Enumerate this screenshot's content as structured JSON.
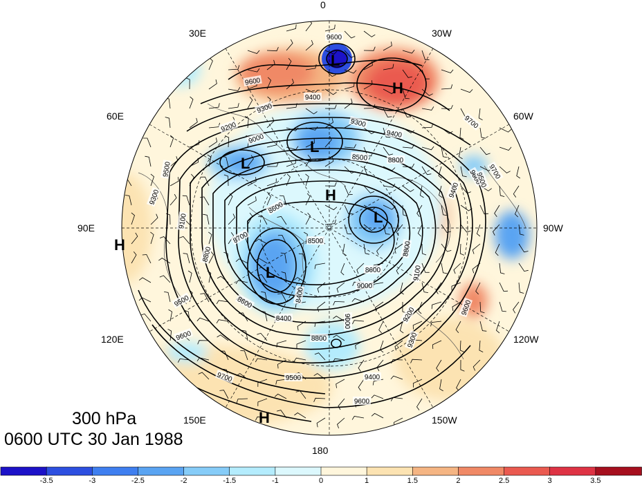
{
  "map": {
    "longitude_labels": [
      "0",
      "30W",
      "60W",
      "90W",
      "120W",
      "150W",
      "180",
      "150E",
      "120E",
      "90E",
      "60E",
      "30E"
    ],
    "center_labels": [
      "L",
      "H",
      "L",
      "L",
      "H",
      "L",
      "L",
      "H",
      "H"
    ],
    "contour_labels": [
      "9600",
      "9600",
      "9400",
      "9300",
      "9300",
      "9200",
      "9000",
      "9500",
      "9400",
      "8800",
      "8500",
      "9700",
      "9600",
      "9500",
      "9400",
      "9100",
      "8800",
      "8600",
      "8600",
      "9100",
      "9300",
      "9200",
      "8700",
      "8800",
      "8500",
      "8400",
      "8800",
      "9000",
      "9300",
      "9500",
      "9400",
      "9600",
      "9700",
      "9700",
      "9600",
      "9500",
      "9600",
      "9000",
      "8400",
      "8600"
    ]
  },
  "title": {
    "level": "300 hPa",
    "datetime": "0600 UTC 30 Jan 1988"
  },
  "colorbar": {
    "labels": [
      "-3.5",
      "-3",
      "-2.5",
      "-2",
      "-1.5",
      "-1",
      "0",
      "1",
      "1.5",
      "2",
      "2.5",
      "3",
      "3.5"
    ],
    "colors": [
      "#1c12c8",
      "#2d4fe0",
      "#3f7ff0",
      "#5aa4f2",
      "#86ccf8",
      "#b4ecfd",
      "#dcf8fd",
      "#fff6dc",
      "#fce3b2",
      "#f5b583",
      "#f08966",
      "#ea5a50",
      "#de3344",
      "#a60f1e"
    ]
  }
}
